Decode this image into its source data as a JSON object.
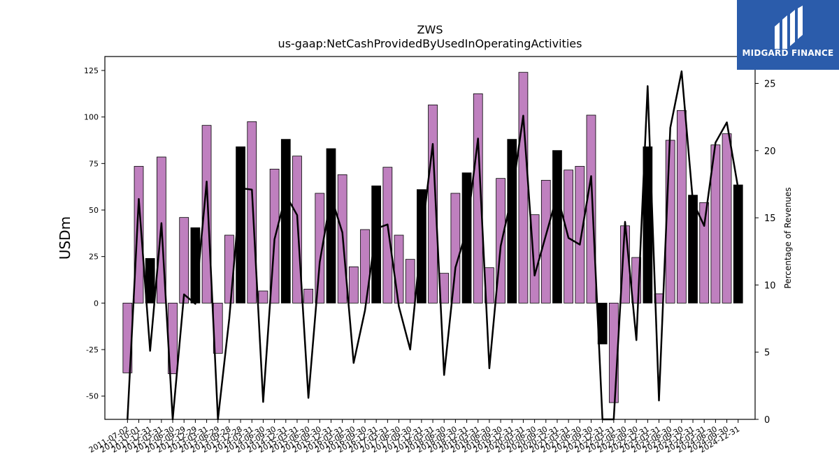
{
  "logo": {
    "text": "MIDGARD FINANCE",
    "bg_color": "#2b5cab",
    "icon": "midgard-logo-icon"
  },
  "chart_data": {
    "type": "bar",
    "title": "ZWS",
    "subtitle": "us-gaap:NetCashProvidedByUsedInOperatingActivities",
    "ylabel": "USDm",
    "y2label": "Percentage of Revenues",
    "ylim": [
      -62.5,
      132.5
    ],
    "y2lim": [
      0,
      27
    ],
    "yticks": [
      -50,
      -25,
      0,
      25,
      50,
      75,
      100,
      125
    ],
    "y2ticks": [
      0,
      5,
      10,
      15,
      20,
      25
    ],
    "grid": false,
    "colors": {
      "quarterly": "#bf80bf",
      "annual": "#000000",
      "line": "#000000"
    },
    "categories": [
      "2011-07-02",
      "2011-10-01",
      "2011-12-31",
      "2012-03-31",
      "2012-06-30",
      "2012-09-29",
      "2012-12-29",
      "2013-03-31",
      "2013-06-29",
      "2013-09-28",
      "2013-12-28",
      "2014-03-31",
      "2014-06-30",
      "2014-09-30",
      "2014-12-31",
      "2015-03-31",
      "2015-06-30",
      "2015-09-30",
      "2015-12-31",
      "2016-03-31",
      "2016-06-30",
      "2016-09-30",
      "2016-12-31",
      "2017-03-31",
      "2017-06-30",
      "2017-09-30",
      "2017-12-31",
      "2018-03-31",
      "2018-06-30",
      "2018-09-30",
      "2018-12-31",
      "2019-03-31",
      "2019-06-30",
      "2019-09-30",
      "2019-12-31",
      "2020-03-31",
      "2020-06-30",
      "2020-09-30",
      "2020-12-31",
      "2021-03-31",
      "2021-06-30",
      "2021-09-30",
      "2021-12-31",
      "2022-03-31",
      "2022-06-30",
      "2022-09-30",
      "2022-12-31",
      "2023-03-31",
      "2023-06-30",
      "2023-09-30",
      "2023-12-31",
      "2024-03-31",
      "2024-06-30",
      "2024-09-30",
      "2024-12-31"
    ],
    "values": [
      -37.5,
      73.5,
      24,
      78.5,
      -38,
      46,
      40.5,
      95.5,
      -27,
      36.5,
      84,
      97.5,
      6.5,
      72,
      88,
      79,
      7.5,
      59,
      83,
      69,
      19.5,
      39.5,
      63,
      73,
      36.5,
      23.5,
      61,
      106.5,
      16,
      59,
      70,
      112.5,
      19,
      67,
      88,
      124,
      47.5,
      66,
      82,
      71.5,
      73.5,
      101,
      -22,
      -53.5,
      41.5,
      24.5,
      84,
      5,
      87.5,
      103.5,
      58,
      54,
      85,
      91,
      63.5
    ],
    "is_annual": [
      0,
      0,
      1,
      0,
      0,
      0,
      1,
      0,
      0,
      0,
      1,
      0,
      0,
      0,
      1,
      0,
      0,
      0,
      1,
      0,
      0,
      0,
      1,
      0,
      0,
      0,
      1,
      0,
      0,
      0,
      1,
      0,
      0,
      0,
      1,
      0,
      0,
      0,
      1,
      0,
      0,
      0,
      1,
      0,
      0,
      0,
      1,
      0,
      0,
      0,
      1,
      0,
      0,
      0,
      1
    ],
    "pct_of_revenue": [
      0,
      16.4,
      5.1,
      14.6,
      0,
      9.3,
      8.6,
      17.7,
      0,
      7.5,
      17.2,
      17.1,
      1.3,
      13.4,
      16.7,
      15.2,
      1.6,
      11.7,
      16.6,
      13.9,
      4.2,
      8.1,
      14.2,
      14.5,
      8.4,
      5.2,
      13.6,
      20.5,
      3.3,
      11.3,
      14.1,
      20.9,
      3.8,
      12.9,
      16.7,
      22.6,
      10.7,
      13.7,
      16.7,
      13.5,
      13.0,
      18.1,
      0,
      0,
      14.7,
      5.9,
      24.8,
      1.4,
      21.7,
      25.9,
      16.2,
      14.4,
      20.6,
      22.1,
      17.2
    ]
  }
}
